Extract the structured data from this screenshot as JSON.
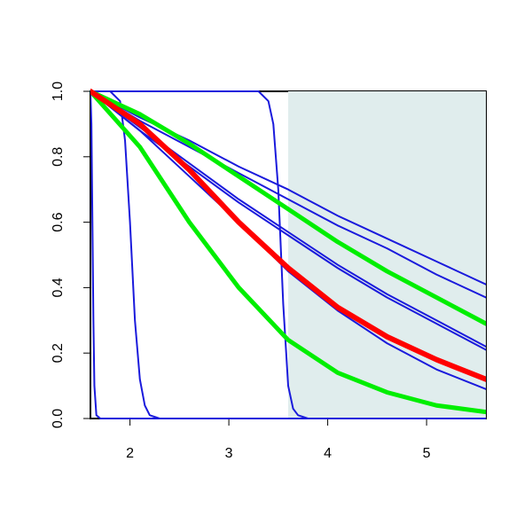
{
  "chart_data": {
    "type": "line",
    "xlim": [
      1.6,
      5.6
    ],
    "ylim": [
      0,
      1
    ],
    "xticks": [
      2,
      3,
      4,
      5
    ],
    "yticks": [
      {
        "value": 0,
        "label": "0.0"
      },
      {
        "value": 0.2,
        "label": "0.2"
      },
      {
        "value": 0.4,
        "label": "0.4"
      },
      {
        "value": 0.6,
        "label": "0.6"
      },
      {
        "value": 0.8,
        "label": "0.8"
      },
      {
        "value": 1,
        "label": "1.0"
      }
    ],
    "shade": {
      "xlim": [
        3.6,
        5.6
      ],
      "color": "#e0eded"
    },
    "series": [
      {
        "color": "#1a1adc",
        "linewidth": 2,
        "x": [
          1.6,
          2.1,
          2.6,
          3.1,
          3.6,
          4.1,
          4.6,
          5.1,
          5.6
        ],
        "values": [
          1,
          0.92,
          0.85,
          0.77,
          0.7,
          0.62,
          0.55,
          0.48,
          0.41
        ]
      },
      {
        "color": "#1a1adc",
        "linewidth": 2,
        "x": [
          1.6,
          2.1,
          2.6,
          3.1,
          3.6,
          4.1,
          4.6,
          5.1,
          5.6
        ],
        "values": [
          1,
          0.91,
          0.83,
          0.75,
          0.67,
          0.59,
          0.52,
          0.44,
          0.37
        ]
      },
      {
        "color": "#1a1adc",
        "linewidth": 2,
        "x": [
          1.6,
          2.1,
          2.6,
          3.1,
          3.6,
          4.1,
          4.6,
          5.1,
          5.6
        ],
        "values": [
          1,
          0.89,
          0.78,
          0.67,
          0.57,
          0.47,
          0.38,
          0.3,
          0.22
        ]
      },
      {
        "color": "#1a1adc",
        "linewidth": 2,
        "x": [
          1.6,
          2.1,
          2.6,
          3.1,
          3.6,
          4.1,
          4.6,
          5.1,
          5.6
        ],
        "values": [
          1,
          0.88,
          0.77,
          0.66,
          0.56,
          0.46,
          0.37,
          0.29,
          0.21
        ]
      },
      {
        "color": "#1a1adc",
        "linewidth": 2,
        "x": [
          1.6,
          2.1,
          2.6,
          3.1,
          3.6,
          4.1,
          4.6,
          5.1,
          5.6
        ],
        "values": [
          1,
          0.88,
          0.74,
          0.6,
          0.45,
          0.33,
          0.23,
          0.15,
          0.09
        ]
      },
      {
        "color": "#1a1adc",
        "linewidth": 2,
        "x": [
          1.6,
          1.61,
          1.62,
          1.63,
          1.64,
          1.66,
          1.7,
          5.6
        ],
        "values": [
          1,
          0.9,
          0.6,
          0.3,
          0.1,
          0.01,
          0,
          0
        ]
      },
      {
        "color": "#1a1adc",
        "linewidth": 2,
        "x": [
          1.6,
          1.8,
          1.9,
          1.95,
          2.0,
          2.05,
          2.1,
          2.15,
          2.2,
          2.3,
          5.6
        ],
        "values": [
          1,
          1,
          0.97,
          0.85,
          0.6,
          0.3,
          0.12,
          0.04,
          0.01,
          0,
          0
        ]
      },
      {
        "color": "#1a1adc",
        "linewidth": 2,
        "x": [
          1.6,
          3.3,
          3.4,
          3.45,
          3.5,
          3.55,
          3.6,
          3.65,
          3.7,
          3.8,
          5.6
        ],
        "values": [
          1,
          1,
          0.97,
          0.9,
          0.7,
          0.35,
          0.1,
          0.03,
          0.01,
          0,
          0
        ]
      },
      {
        "color": "#00ee00",
        "linewidth": 5,
        "x": [
          1.6,
          2.1,
          2.6,
          3.1,
          3.6,
          4.1,
          4.6,
          5.1,
          5.6
        ],
        "values": [
          1,
          0.93,
          0.84,
          0.74,
          0.64,
          0.54,
          0.45,
          0.37,
          0.29
        ]
      },
      {
        "color": "#00ee00",
        "linewidth": 5,
        "x": [
          1.6,
          2.1,
          2.6,
          3.1,
          3.6,
          4.1,
          4.6,
          5.1,
          5.6
        ],
        "values": [
          1,
          0.83,
          0.6,
          0.4,
          0.24,
          0.14,
          0.08,
          0.04,
          0.02
        ]
      },
      {
        "color": "#ff0000",
        "linewidth": 6,
        "x": [
          1.6,
          2.1,
          2.6,
          3.1,
          3.6,
          4.1,
          4.6,
          5.1,
          5.6
        ],
        "values": [
          1,
          0.9,
          0.76,
          0.6,
          0.46,
          0.34,
          0.25,
          0.18,
          0.12
        ]
      }
    ]
  }
}
